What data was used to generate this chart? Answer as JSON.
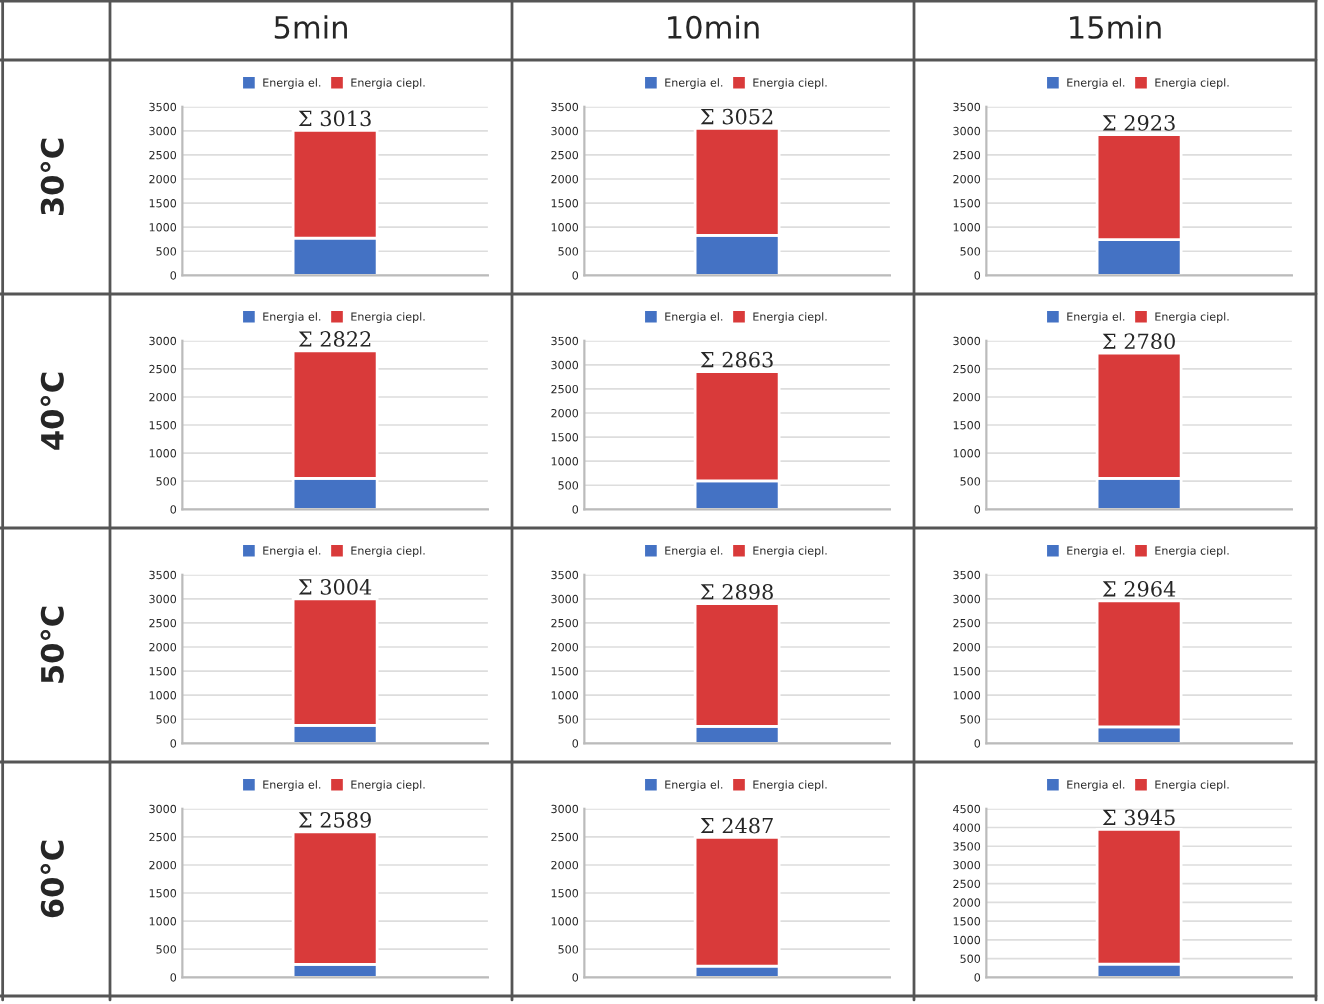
{
  "chart_data": [
    {
      "type": "bar",
      "title": "5min",
      "ylabel": "30°C",
      "stacked": true,
      "categories": [
        null
      ],
      "series": [
        {
          "name": "Energia el.",
          "color": "#4472c4",
          "values": [
            770
          ]
        },
        {
          "name": "Energia ciepl.",
          "color": "#d93a3a",
          "values": [
            2240
          ]
        }
      ],
      "totals": [
        "Σ 3013"
      ],
      "ylim": [
        0,
        3500
      ],
      "yticks": [
        0,
        500,
        1000,
        1500,
        2000,
        2500,
        3000,
        3500
      ],
      "grid": "y",
      "legend": "top"
    },
    {
      "type": "bar",
      "title": "10min",
      "stacked": true,
      "categories": [
        null
      ],
      "series": [
        {
          "name": "Energia el.",
          "color": "#4472c4",
          "values": [
            830
          ]
        },
        {
          "name": "Energia ciepl.",
          "color": "#d93a3a",
          "values": [
            2220
          ]
        }
      ],
      "totals": [
        "Σ 3052"
      ],
      "ylim": [
        0,
        3500
      ],
      "yticks": [
        0,
        500,
        1000,
        1500,
        2000,
        2500,
        3000,
        3500
      ],
      "grid": "y",
      "legend": "top"
    },
    {
      "type": "bar",
      "title": "15min",
      "stacked": true,
      "categories": [
        null
      ],
      "series": [
        {
          "name": "Energia el.",
          "color": "#4472c4",
          "values": [
            740
          ]
        },
        {
          "name": "Energia ciepl.",
          "color": "#d93a3a",
          "values": [
            2180
          ]
        }
      ],
      "totals": [
        "Σ 2923"
      ],
      "ylim": [
        0,
        3500
      ],
      "yticks": [
        0,
        500,
        1000,
        1500,
        2000,
        2500,
        3000,
        3500
      ],
      "grid": "y",
      "legend": "top"
    },
    {
      "type": "bar",
      "ylabel": "40°C",
      "stacked": true,
      "categories": [
        null
      ],
      "series": [
        {
          "name": "Energia el.",
          "color": "#4472c4",
          "values": [
            550
          ]
        },
        {
          "name": "Energia ciepl.",
          "color": "#d93a3a",
          "values": [
            2270
          ]
        }
      ],
      "totals": [
        "Σ 2822"
      ],
      "ylim": [
        0,
        3000
      ],
      "yticks": [
        0,
        500,
        1000,
        1500,
        2000,
        2500,
        3000
      ],
      "grid": "y",
      "legend": "top"
    },
    {
      "type": "bar",
      "stacked": true,
      "categories": [
        null
      ],
      "series": [
        {
          "name": "Energia el.",
          "color": "#4472c4",
          "values": [
            590
          ]
        },
        {
          "name": "Energia ciepl.",
          "color": "#d93a3a",
          "values": [
            2270
          ]
        }
      ],
      "totals": [
        "Σ 2863"
      ],
      "ylim": [
        0,
        3500
      ],
      "yticks": [
        0,
        500,
        1000,
        1500,
        2000,
        2500,
        3000,
        3500
      ],
      "grid": "y",
      "legend": "top"
    },
    {
      "type": "bar",
      "stacked": true,
      "categories": [
        null
      ],
      "series": [
        {
          "name": "Energia el.",
          "color": "#4472c4",
          "values": [
            550
          ]
        },
        {
          "name": "Energia ciepl.",
          "color": "#d93a3a",
          "values": [
            2230
          ]
        }
      ],
      "totals": [
        "Σ 2780"
      ],
      "ylim": [
        0,
        3000
      ],
      "yticks": [
        0,
        500,
        1000,
        1500,
        2000,
        2500,
        3000
      ],
      "grid": "y",
      "legend": "top"
    },
    {
      "type": "bar",
      "ylabel": "50°C",
      "stacked": true,
      "categories": [
        null
      ],
      "series": [
        {
          "name": "Energia el.",
          "color": "#4472c4",
          "values": [
            370
          ]
        },
        {
          "name": "Energia ciepl.",
          "color": "#d93a3a",
          "values": [
            2630
          ]
        }
      ],
      "totals": [
        "Σ 3004"
      ],
      "ylim": [
        0,
        3500
      ],
      "yticks": [
        0,
        500,
        1000,
        1500,
        2000,
        2500,
        3000,
        3500
      ],
      "grid": "y",
      "legend": "top"
    },
    {
      "type": "bar",
      "stacked": true,
      "categories": [
        null
      ],
      "series": [
        {
          "name": "Energia el.",
          "color": "#4472c4",
          "values": [
            350
          ]
        },
        {
          "name": "Energia ciepl.",
          "color": "#d93a3a",
          "values": [
            2550
          ]
        }
      ],
      "totals": [
        "Σ 2898"
      ],
      "ylim": [
        0,
        3500
      ],
      "yticks": [
        0,
        500,
        1000,
        1500,
        2000,
        2500,
        3000,
        3500
      ],
      "grid": "y",
      "legend": "top"
    },
    {
      "type": "bar",
      "stacked": true,
      "categories": [
        null
      ],
      "series": [
        {
          "name": "Energia el.",
          "color": "#4472c4",
          "values": [
            340
          ]
        },
        {
          "name": "Energia ciepl.",
          "color": "#d93a3a",
          "values": [
            2620
          ]
        }
      ],
      "totals": [
        "Σ 2964"
      ],
      "ylim": [
        0,
        3500
      ],
      "yticks": [
        0,
        500,
        1000,
        1500,
        2000,
        2500,
        3000,
        3500
      ],
      "grid": "y",
      "legend": "top"
    },
    {
      "type": "bar",
      "ylabel": "60°C",
      "stacked": true,
      "categories": [
        null
      ],
      "series": [
        {
          "name": "Energia el.",
          "color": "#4472c4",
          "values": [
            230
          ]
        },
        {
          "name": "Energia ciepl.",
          "color": "#d93a3a",
          "values": [
            2360
          ]
        }
      ],
      "totals": [
        "Σ 2589"
      ],
      "ylim": [
        0,
        3000
      ],
      "yticks": [
        0,
        500,
        1000,
        1500,
        2000,
        2500,
        3000
      ],
      "grid": "y",
      "legend": "top"
    },
    {
      "type": "bar",
      "stacked": true,
      "categories": [
        null
      ],
      "series": [
        {
          "name": "Energia el.",
          "color": "#4472c4",
          "values": [
            200
          ]
        },
        {
          "name": "Energia ciepl.",
          "color": "#d93a3a",
          "values": [
            2290
          ]
        }
      ],
      "totals": [
        "Σ 2487"
      ],
      "ylim": [
        0,
        3000
      ],
      "yticks": [
        0,
        500,
        1000,
        1500,
        2000,
        2500,
        3000
      ],
      "grid": "y",
      "legend": "top"
    },
    {
      "type": "bar",
      "stacked": true,
      "categories": [
        null
      ],
      "series": [
        {
          "name": "Energia el.",
          "color": "#4472c4",
          "values": [
            350
          ]
        },
        {
          "name": "Energia ciepl.",
          "color": "#d93a3a",
          "values": [
            3600
          ]
        }
      ],
      "totals": [
        "Σ 3945"
      ],
      "ylim": [
        0,
        4500
      ],
      "yticks": [
        0,
        500,
        1000,
        1500,
        2000,
        2500,
        3000,
        3500,
        4000,
        4500
      ],
      "grid": "y",
      "legend": "top"
    }
  ]
}
